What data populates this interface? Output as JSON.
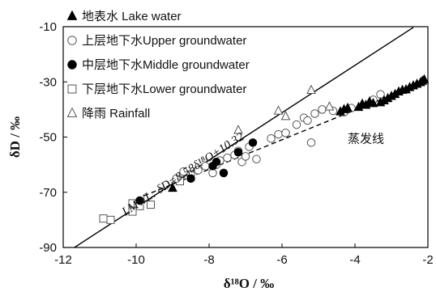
{
  "chart_data": {
    "type": "scatter",
    "title": "",
    "xlabel": "δ¹⁸O / ‰",
    "ylabel": "δD / ‰",
    "xlim": [
      -12,
      -2
    ],
    "ylim": [
      -90,
      -10
    ],
    "xticks": [
      -12,
      -10,
      -8,
      -6,
      -4,
      -2
    ],
    "yticks": [
      -90,
      -70,
      -50,
      -30,
      -10
    ],
    "xtick_labels": [
      "-12",
      "-10",
      "-8",
      "-6",
      "-4",
      "-2"
    ],
    "ytick_labels": [
      "-90",
      "-70",
      "-50",
      "-30",
      "-10"
    ],
    "grid": false,
    "legend_position": "top-left",
    "series": [
      {
        "name": "地表水 Lake water",
        "marker": "filled-triangle",
        "color": "#000000",
        "points": [
          [
            -9.0,
            -68.5
          ],
          [
            -4.4,
            -40.8
          ],
          [
            -4.3,
            -40.0
          ],
          [
            -4.2,
            -39.5
          ],
          [
            -3.9,
            -39.2
          ],
          [
            -3.8,
            -38.0
          ],
          [
            -3.7,
            -38.4
          ],
          [
            -3.6,
            -37.2
          ],
          [
            -3.5,
            -37.8
          ],
          [
            -3.3,
            -37.5
          ],
          [
            -3.2,
            -36.8
          ],
          [
            -3.1,
            -36.0
          ],
          [
            -3.0,
            -35.2
          ],
          [
            -2.9,
            -34.5
          ],
          [
            -2.8,
            -33.6
          ],
          [
            -2.7,
            -33.0
          ],
          [
            -2.6,
            -32.8
          ],
          [
            -2.5,
            -32.0
          ],
          [
            -2.4,
            -31.4
          ],
          [
            -2.3,
            -30.8
          ],
          [
            -2.2,
            -30.2
          ],
          [
            -2.15,
            -29.7
          ],
          [
            -2.1,
            -29.2
          ]
        ]
      },
      {
        "name": "上层地下水Upper groundwater",
        "marker": "open-circle",
        "color": "#000000",
        "points": [
          [
            -8.9,
            -65.0
          ],
          [
            -8.7,
            -62.5
          ],
          [
            -8.5,
            -63.5
          ],
          [
            -8.3,
            -62.0
          ],
          [
            -8.1,
            -60.5
          ],
          [
            -7.9,
            -63.0
          ],
          [
            -7.8,
            -60.0
          ],
          [
            -7.7,
            -58.5
          ],
          [
            -7.5,
            -57.5
          ],
          [
            -7.3,
            -56.5
          ],
          [
            -7.2,
            -55.0
          ],
          [
            -7.1,
            -59.0
          ],
          [
            -7.0,
            -57.0
          ],
          [
            -6.9,
            -53.5
          ],
          [
            -6.7,
            -58.0
          ],
          [
            -6.3,
            -50.5
          ],
          [
            -6.1,
            -49.0
          ],
          [
            -5.9,
            -48.5
          ],
          [
            -5.6,
            -45.5
          ],
          [
            -5.4,
            -43.0
          ],
          [
            -5.3,
            -44.0
          ],
          [
            -5.2,
            -52.0
          ],
          [
            -5.1,
            -41.5
          ],
          [
            -4.9,
            -40.0
          ],
          [
            -4.6,
            -40.5
          ],
          [
            -4.3,
            -41.0
          ],
          [
            -4.1,
            -39.5
          ],
          [
            -3.5,
            -36.5
          ],
          [
            -3.3,
            -34.5
          ]
        ]
      },
      {
        "name": "中层地下水Middle groundwater",
        "marker": "filled-circle",
        "color": "#000000",
        "points": [
          [
            -9.9,
            -73.0
          ],
          [
            -8.5,
            -65.0
          ],
          [
            -7.9,
            -60.5
          ],
          [
            -7.8,
            -59.0
          ],
          [
            -7.6,
            -63.0
          ],
          [
            -7.2,
            -55.5
          ],
          [
            -6.8,
            -52.0
          ]
        ]
      },
      {
        "name": "下层地下水Lower groundwater",
        "marker": "open-square",
        "color": "#000000",
        "points": [
          [
            -10.9,
            -79.5
          ],
          [
            -10.7,
            -80.0
          ],
          [
            -10.1,
            -77.0
          ],
          [
            -10.1,
            -74.0
          ],
          [
            -9.9,
            -75.0
          ],
          [
            -9.6,
            -74.5
          ],
          [
            -8.8,
            -66.0
          ]
        ]
      },
      {
        "name": "降雨 Rainfall",
        "marker": "open-triangle",
        "color": "#000000",
        "points": [
          [
            -7.2,
            -47.5
          ],
          [
            -6.1,
            -40.5
          ],
          [
            -5.9,
            -42.5
          ],
          [
            -5.2,
            -33.0
          ],
          [
            -4.7,
            -39.0
          ]
        ]
      }
    ],
    "lines": [
      {
        "name": "LMWL",
        "label": "LMWL: δD=8.58δ¹⁸O+10.32",
        "style": "solid",
        "slope": 8.58,
        "intercept": 10.32,
        "x_range": [
          -11.7,
          -2.4
        ]
      },
      {
        "name": "蒸发线",
        "label": "蒸发线",
        "style": "dashed",
        "points": [
          [
            -10.2,
            -73.5
          ],
          [
            -2.0,
            -29.5
          ]
        ]
      }
    ]
  }
}
